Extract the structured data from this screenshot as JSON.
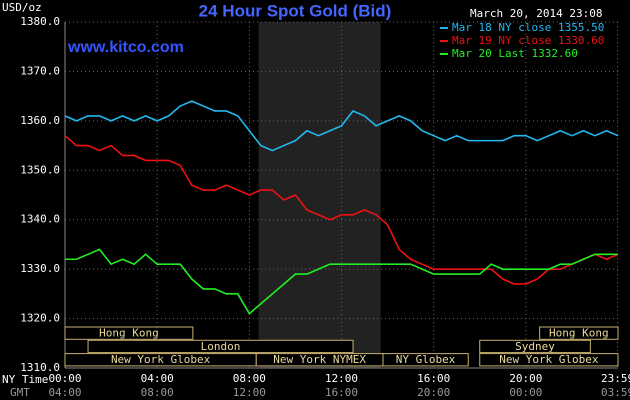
{
  "chart_data": {
    "type": "line",
    "title": "24 Hour Spot Gold (Bid)",
    "y_unit_label": "USD/oz",
    "timestamp": "March 20, 2014 23:08",
    "watermark": "www.kitco.com",
    "x_label": "NY Time",
    "x2_label": "GMT",
    "grid": true,
    "legend_position": "top-right",
    "xlim": [
      0,
      24
    ],
    "ylim": [
      1310,
      1380
    ],
    "yticks": [
      {
        "value": 1310,
        "label": "1310.0"
      },
      {
        "value": 1320,
        "label": "1320.0"
      },
      {
        "value": 1330,
        "label": "1330.0"
      },
      {
        "value": 1340,
        "label": "1340.0"
      },
      {
        "value": 1350,
        "label": "1350.0"
      },
      {
        "value": 1360,
        "label": "1360.0"
      },
      {
        "value": 1370,
        "label": "1370.0"
      },
      {
        "value": 1380,
        "label": "1380.0"
      }
    ],
    "xticks": [
      {
        "value": 0,
        "label": "00:00"
      },
      {
        "value": 4,
        "label": "04:00"
      },
      {
        "value": 8,
        "label": "08:00"
      },
      {
        "value": 12,
        "label": "12:00"
      },
      {
        "value": 16,
        "label": "16:00"
      },
      {
        "value": 20,
        "label": "20:00"
      },
      {
        "value": 23.983,
        "label": "23:59"
      }
    ],
    "x2ticks": [
      {
        "value": 0,
        "label": "04:00"
      },
      {
        "value": 4,
        "label": "08:00"
      },
      {
        "value": 8,
        "label": "12:00"
      },
      {
        "value": 12,
        "label": "16:00"
      },
      {
        "value": 16,
        "label": "20:00"
      },
      {
        "value": 20,
        "label": "00:00"
      },
      {
        "value": 23.983,
        "label": "03:59"
      }
    ],
    "highlight_x": [
      8.4,
      13.7
    ],
    "session_rows": [
      [
        {
          "label": "Hong Kong",
          "start": 0,
          "end": 5.55
        },
        {
          "label": "Hong Kong",
          "start": 20.6,
          "end": 24
        }
      ],
      [
        {
          "label": "London",
          "start": 1,
          "end": 12.5
        },
        {
          "label": "Sydney",
          "start": 18,
          "end": 22.8
        }
      ],
      [
        {
          "label": "New York Globex",
          "start": 0,
          "end": 8.3
        },
        {
          "label": "New York NYMEX",
          "start": 8.3,
          "end": 13.8
        },
        {
          "label": "NY Globex",
          "start": 13.8,
          "end": 17.5
        },
        {
          "label": "New York Globex",
          "start": 18,
          "end": 24
        }
      ]
    ],
    "x": [
      0,
      0.5,
      1,
      1.5,
      2,
      2.5,
      3,
      3.5,
      4,
      4.5,
      5,
      5.5,
      6,
      6.5,
      7,
      7.5,
      8,
      8.5,
      9,
      9.5,
      10,
      10.5,
      11,
      11.5,
      12,
      12.5,
      13,
      13.5,
      14,
      14.5,
      15,
      15.5,
      16,
      16.5,
      17,
      17.5,
      18,
      18.5,
      19,
      19.5,
      20,
      20.5,
      21,
      21.5,
      22,
      22.5,
      23,
      23.5,
      24
    ],
    "series": [
      {
        "name": "Mar 18 NY close 1355.50",
        "color": "#22b8f0",
        "values": [
          1361,
          1360,
          1361,
          1361,
          1360,
          1361,
          1360,
          1361,
          1360,
          1361,
          1363,
          1364,
          1363,
          1362,
          1362,
          1361,
          1358,
          1355,
          1354,
          1355,
          1356,
          1358,
          1357,
          1358,
          1359,
          1362,
          1361,
          1359,
          1360,
          1361,
          1360,
          1358,
          1357,
          1356,
          1357,
          1356,
          1356,
          1356,
          1356,
          1357,
          1357,
          1356,
          1357,
          1358,
          1357,
          1358,
          1357,
          1358,
          1357
        ]
      },
      {
        "name": "Mar 19 NY close 1330.60",
        "color": "#ee1111",
        "values": [
          1357,
          1355,
          1355,
          1354,
          1355,
          1353,
          1353,
          1352,
          1352,
          1352,
          1351,
          1347,
          1346,
          1346,
          1347,
          1346,
          1345,
          1346,
          1346,
          1344,
          1345,
          1342,
          1341,
          1340,
          1341,
          1341,
          1342,
          1341,
          1339,
          1334,
          1332,
          1331,
          1330,
          1330,
          1330,
          1330,
          1330,
          1330,
          1328,
          1327,
          1327,
          1328,
          1330,
          1330,
          1331,
          1332,
          1333,
          1332,
          1333
        ]
      },
      {
        "name": "Mar 20 Last 1332.60",
        "color": "#22ee22",
        "values": [
          1332,
          1332,
          1333,
          1334,
          1331,
          1332,
          1331,
          1333,
          1331,
          1331,
          1331,
          1328,
          1326,
          1326,
          1325,
          1325,
          1321,
          1323,
          1325,
          1327,
          1329,
          1329,
          1330,
          1331,
          1331,
          1331,
          1331,
          1331,
          1331,
          1331,
          1331,
          1330,
          1329,
          1329,
          1329,
          1329,
          1329,
          1331,
          1330,
          1330,
          1330,
          1330,
          1330,
          1331,
          1331,
          1332,
          1333,
          1333,
          1333
        ]
      }
    ]
  }
}
